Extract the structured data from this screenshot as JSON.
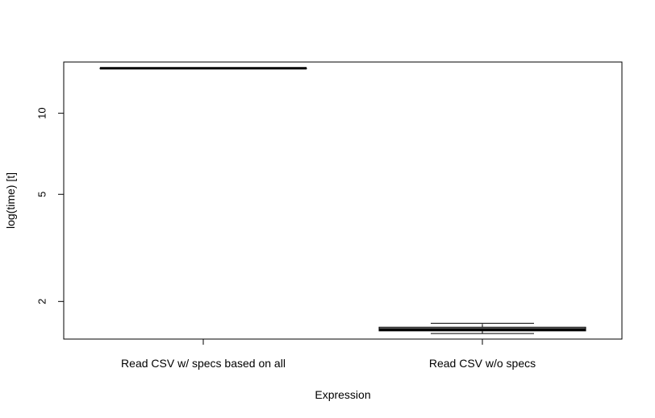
{
  "chart_data": {
    "type": "boxplot",
    "xlabel": "Expression",
    "ylabel": "log(time) [t]",
    "y_scale": "log",
    "ylim": [
      1.45,
      15.5
    ],
    "y_ticks": [
      {
        "value": 2,
        "label": "2"
      },
      {
        "value": 5,
        "label": "5"
      },
      {
        "value": 10,
        "label": "10"
      }
    ],
    "categories": [
      "Read CSV w/ specs based on all",
      "Read CSV w/o specs"
    ],
    "boxes": [
      {
        "category": "Read CSV w/ specs based on all",
        "min": 14.7,
        "q1": 14.7,
        "median": 14.7,
        "q3": 14.7,
        "max": 14.7,
        "fill": "#ffffff"
      },
      {
        "category": "Read CSV w/o specs",
        "min": 1.52,
        "q1": 1.555,
        "median": 1.575,
        "q3": 1.605,
        "max": 1.66,
        "fill": "#bebebe"
      }
    ],
    "grid": false
  }
}
